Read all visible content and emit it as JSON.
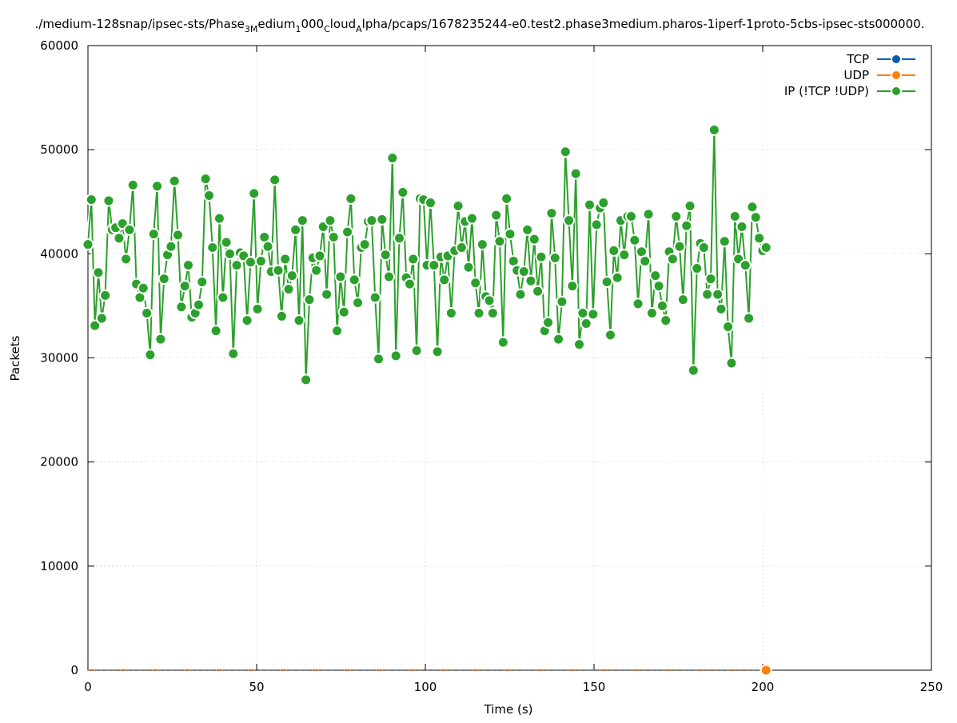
{
  "chart_data": {
    "type": "line",
    "title_parts": [
      {
        "text": "./medium-128snap/ipsec-sts/Phase",
        "sub": false
      },
      {
        "text": "3M",
        "sub": true
      },
      {
        "text": "edium",
        "sub": false
      },
      {
        "text": "1",
        "sub": true
      },
      {
        "text": "000",
        "sub": false
      },
      {
        "text": "C",
        "sub": true
      },
      {
        "text": "loud",
        "sub": false
      },
      {
        "text": "A",
        "sub": true
      },
      {
        "text": "lpha/pcaps/1678235244-e0.test2.phase3medium.pharos-1iperf-1proto-5cbs-ipsec-sts000000.",
        "sub": false
      }
    ],
    "xlabel": "Time (s)",
    "ylabel": "Packets",
    "xlim": [
      0,
      250
    ],
    "ylim": [
      0,
      60000
    ],
    "xticks": [
      "0",
      "50",
      "100",
      "150",
      "200",
      "250"
    ],
    "yticks": [
      "0",
      "10000",
      "20000",
      "30000",
      "40000",
      "50000",
      "60000"
    ],
    "grid": true,
    "legend_position": "top-right",
    "series": [
      {
        "name": "TCP",
        "color": "#0060ad",
        "x": [],
        "values": []
      },
      {
        "name": "UDP",
        "color": "#ff7f0e",
        "x": [
          0,
          201
        ],
        "values": [
          0,
          0
        ],
        "marker_x": [
          201
        ]
      },
      {
        "name": "IP (!TCP  !UDP)",
        "color": "#2ca02c",
        "x_start": 0,
        "x_end": 201,
        "values": [
          40900,
          45200,
          33100,
          38200,
          33800,
          36000,
          45100,
          42300,
          42500,
          41500,
          42900,
          39500,
          42300,
          46600,
          37100,
          35800,
          36700,
          34300,
          30300,
          41900,
          46500,
          31800,
          37600,
          39900,
          40700,
          47000,
          41800,
          34900,
          36900,
          38900,
          33900,
          34300,
          35100,
          37300,
          47200,
          45600,
          40600,
          32600,
          43400,
          35800,
          41100,
          40000,
          30400,
          38900,
          40100,
          39800,
          33600,
          39200,
          45800,
          34700,
          39300,
          41600,
          40700,
          38300,
          47100,
          38400,
          34000,
          39500,
          36600,
          37900,
          42300,
          33600,
          43200,
          27900,
          35600,
          39600,
          38400,
          39800,
          42600,
          36100,
          43200,
          41600,
          32600,
          37800,
          34400,
          42100,
          45300,
          37500,
          35300,
          40600,
          40900,
          43100,
          43200,
          35800,
          29900,
          43300,
          39900,
          37800,
          49200,
          30200,
          41500,
          45900,
          37700,
          37100,
          39500,
          30700,
          45300,
          45200,
          38900,
          44900,
          38900,
          30600,
          39700,
          37500,
          39800,
          34300,
          40300,
          44600,
          40600,
          43100,
          38700,
          43400,
          37200,
          34300,
          40900,
          35900,
          35500,
          34300,
          43700,
          41200,
          31500,
          45300,
          41900,
          39300,
          38400,
          36100,
          38300,
          42300,
          37400,
          41400,
          36400,
          39700,
          32600,
          33400,
          43900,
          39600,
          31800,
          35400,
          49800,
          43200,
          36900,
          47700,
          31300,
          34300,
          33300,
          44700,
          34200,
          42800,
          44400,
          44900,
          37300,
          32200,
          40300,
          37700,
          43200,
          39900,
          43600,
          43600,
          41300,
          35200,
          40200,
          39300,
          43800,
          34300,
          37900,
          36900,
          35000,
          33600,
          40200,
          39500,
          43600,
          40700,
          35600,
          42700,
          44600,
          28800,
          38600,
          41000,
          40600,
          36100,
          37600,
          51900,
          36100,
          34700,
          41200,
          33000,
          29500,
          43600,
          39500,
          42600,
          38900,
          33800,
          44500,
          43500,
          41500,
          40300,
          40600
        ]
      }
    ]
  }
}
